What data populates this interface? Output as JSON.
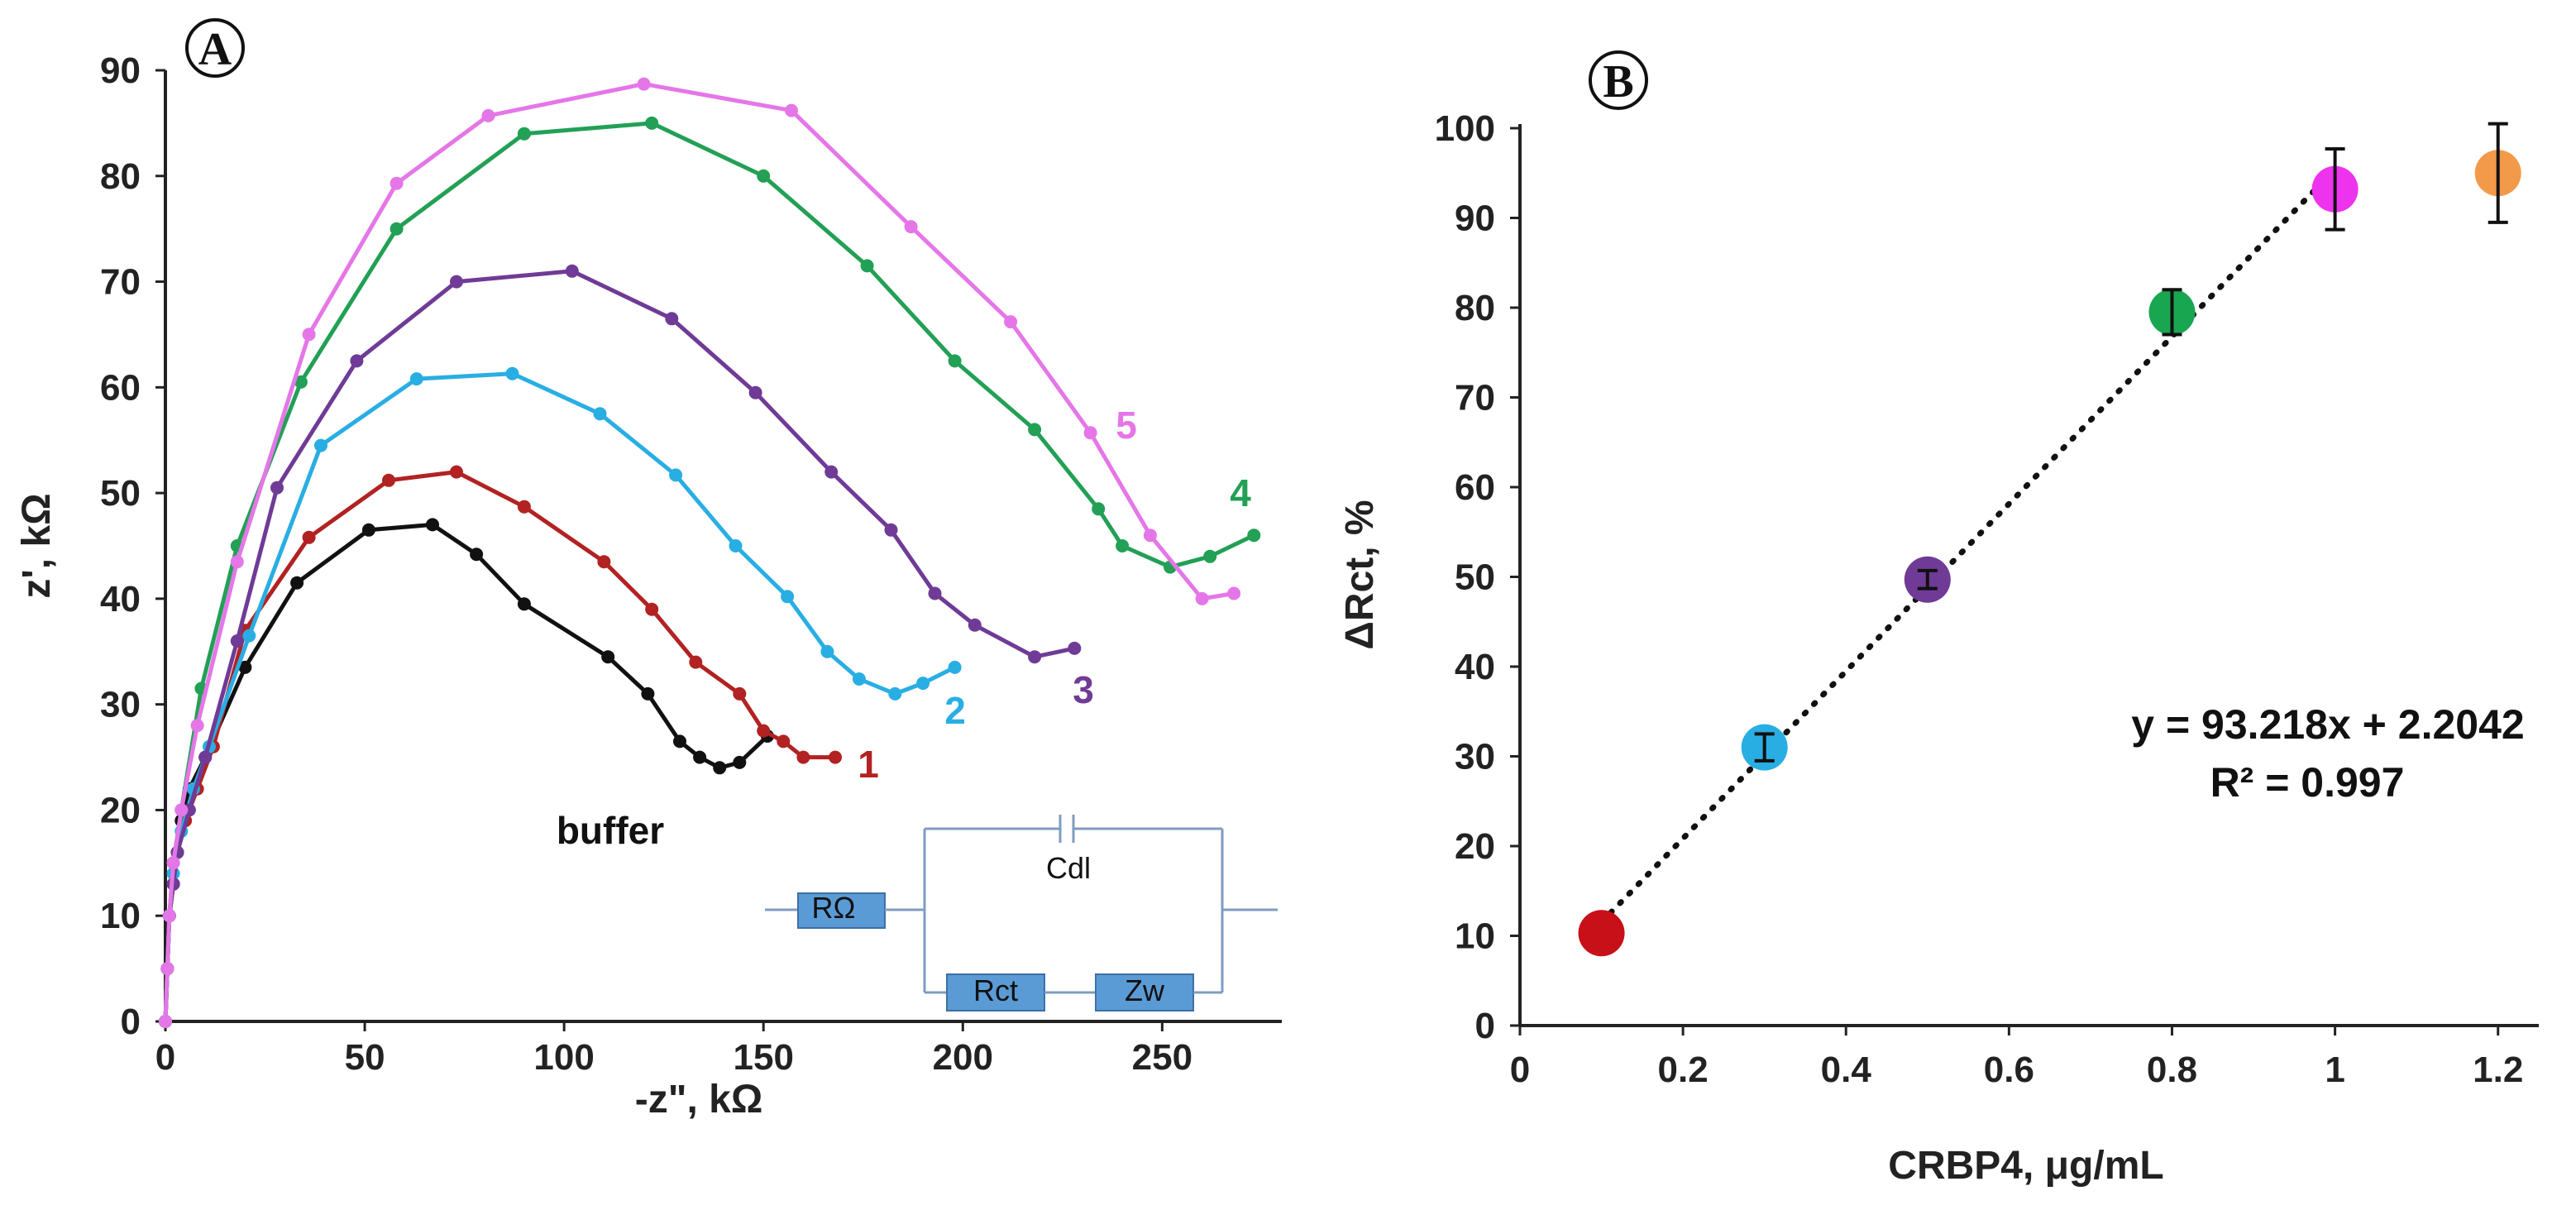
{
  "colors": {
    "buffer": "#111111",
    "c1": "#b22222",
    "c2": "#29aee3",
    "c3": "#6f3b96",
    "c4": "#22a055",
    "c5": "#e576e8",
    "pointB_red": "#c81018",
    "pointB_blue": "#29aee3",
    "pointB_purple": "#6f3b96",
    "pointB_green": "#19a651",
    "pointB_magenta": "#ee33ee",
    "pointB_orange": "#f29a4a",
    "circuit_box": "#5b9bd5",
    "circuit_line": "#7f9cc0"
  },
  "chart_data": [
    {
      "panel": "A",
      "type": "line",
      "xlabel": "-z\", kΩ",
      "ylabel": "z', kΩ",
      "xlim": [
        0,
        280
      ],
      "ylim": [
        0,
        90
      ],
      "xticks": [
        "0",
        "50",
        "100",
        "150",
        "200",
        "250"
      ],
      "yticks": [
        "0",
        "10",
        "20",
        "30",
        "40",
        "50",
        "60",
        "70",
        "80",
        "90"
      ],
      "series": [
        {
          "name": "buffer",
          "color_key": "buffer",
          "x": [
            0,
            0.5,
            1,
            2,
            3,
            4,
            6,
            10,
            20,
            33,
            51,
            67,
            78,
            90,
            111,
            121,
            129,
            134,
            139,
            144,
            151
          ],
          "y": [
            0,
            5,
            10,
            13,
            16,
            19,
            22,
            25,
            33.5,
            41.5,
            46.5,
            47,
            44.2,
            39.5,
            34.5,
            31,
            26.5,
            25,
            24,
            24.5,
            27
          ]
        },
        {
          "name": "1",
          "color_key": "c1",
          "x": [
            0,
            0.5,
            1,
            2,
            3,
            5,
            8,
            12,
            20,
            36,
            56,
            73,
            90,
            110,
            122,
            133,
            144,
            150,
            155,
            160,
            168
          ],
          "y": [
            0,
            5,
            10,
            13,
            16,
            19,
            22,
            26,
            37,
            45.8,
            51.2,
            52,
            48.7,
            43.5,
            39,
            34,
            31,
            27.5,
            26.5,
            25,
            25
          ]
        },
        {
          "name": "2",
          "color_key": "c2",
          "x": [
            0,
            0.5,
            1,
            2,
            4,
            7,
            11,
            21,
            39,
            63,
            87,
            109,
            128,
            143,
            156,
            166,
            174,
            183,
            190,
            198
          ],
          "y": [
            0,
            5,
            10,
            14,
            18,
            22,
            26,
            36.5,
            54.5,
            60.8,
            61.3,
            57.5,
            51.7,
            45,
            40.2,
            35,
            32.4,
            31,
            32,
            33.5
          ]
        },
        {
          "name": "3",
          "color_key": "c3",
          "x": [
            0,
            0.5,
            1,
            2,
            3,
            6,
            10,
            18,
            28,
            48,
            73,
            102,
            127,
            148,
            167,
            182,
            193,
            203,
            218,
            228
          ],
          "y": [
            0,
            5,
            10,
            13,
            16,
            20,
            25,
            36,
            50.5,
            62.5,
            70,
            71,
            66.5,
            59.5,
            52,
            46.5,
            40.5,
            37.5,
            34.5,
            35.3
          ]
        },
        {
          "name": "4",
          "color_key": "c4",
          "x": [
            0,
            0.5,
            1,
            2,
            4,
            9,
            18,
            34,
            58,
            90,
            122,
            150,
            176,
            198,
            218,
            234,
            240,
            252,
            262,
            273
          ],
          "y": [
            0,
            5,
            10,
            15,
            20,
            31.5,
            45,
            60.5,
            75,
            84,
            85,
            80,
            71.5,
            62.5,
            56,
            48.5,
            45,
            43,
            44,
            46
          ]
        },
        {
          "name": "5",
          "color_key": "c5",
          "x": [
            0,
            0.5,
            1,
            2,
            4,
            8,
            18,
            36,
            58,
            81,
            120,
            157,
            187,
            212,
            232,
            247,
            260,
            268
          ],
          "y": [
            0,
            5,
            10,
            15,
            20,
            28,
            43.5,
            65,
            79.3,
            85.7,
            88.7,
            86.2,
            75.2,
            66.2,
            55.7,
            46,
            40,
            40.5
          ]
        }
      ],
      "labels": [
        "buffer",
        "1",
        "2",
        "3",
        "4",
        "5"
      ],
      "inset_circuit": {
        "components": [
          "RΩ",
          "Cdl",
          "Rct",
          "Zw"
        ]
      }
    },
    {
      "panel": "B",
      "type": "scatter",
      "xlabel": "CRBP4, μg/mL",
      "ylabel": "ΔRct, %",
      "xlim": [
        0,
        1.25
      ],
      "ylim": [
        0,
        100
      ],
      "xticks": [
        "0",
        "0.2",
        "0.4",
        "0.6",
        "0.8",
        "1",
        "1.2"
      ],
      "yticks": [
        "0",
        "10",
        "20",
        "30",
        "40",
        "50",
        "60",
        "70",
        "80",
        "90",
        "100"
      ],
      "points": [
        {
          "x": 0.1,
          "y": 10.3,
          "err": 0,
          "color_key": "pointB_red"
        },
        {
          "x": 0.3,
          "y": 31,
          "err": 1.5,
          "color_key": "pointB_blue"
        },
        {
          "x": 0.5,
          "y": 49.7,
          "err": 1,
          "color_key": "pointB_purple"
        },
        {
          "x": 0.8,
          "y": 79.5,
          "err": 2.5,
          "color_key": "pointB_green"
        },
        {
          "x": 1.0,
          "y": 93.2,
          "err": 4.5,
          "color_key": "pointB_magenta"
        },
        {
          "x": 1.2,
          "y": 95,
          "err": 5.5,
          "color_key": "pointB_orange"
        }
      ],
      "trendline": {
        "slope": 93.218,
        "intercept": 2.2042,
        "x_range": [
          0.1,
          1.0
        ],
        "style": "dotted"
      },
      "equation": "y = 93.218x + 2.2042",
      "r2": "R² = 0.997"
    }
  ],
  "panel_letters": [
    "A",
    "B"
  ]
}
